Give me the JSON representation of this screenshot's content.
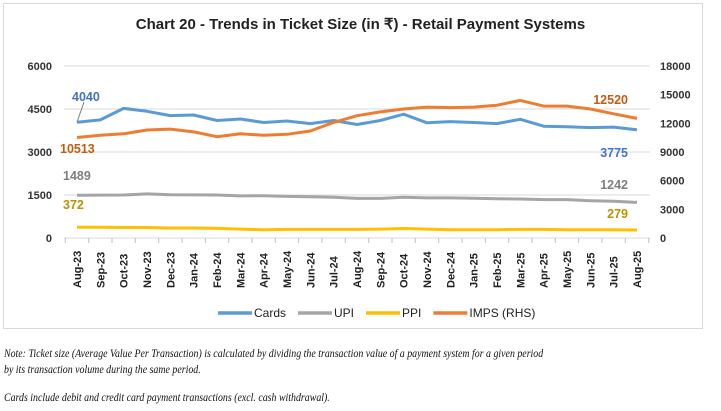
{
  "chart_data": {
    "type": "line",
    "title": "Chart 20 - Trends in Ticket Size (in ₹) - Retail Payment Systems",
    "categories": [
      "Aug-23",
      "Sep-23",
      "Oct-23",
      "Nov-23",
      "Dec-23",
      "Jan-24",
      "Feb-24",
      "Mar-24",
      "Apr-24",
      "May-24",
      "Jun-24",
      "Jul-24",
      "Aug-24",
      "Sep-24",
      "Oct-24",
      "Nov-24",
      "Dec-24",
      "Jan-25",
      "Feb-25",
      "Mar-25",
      "Apr-25",
      "May-25",
      "Jun-25",
      "Jul-25",
      "Aug-25"
    ],
    "y_left": {
      "range": [
        0,
        6000
      ],
      "ticks": [
        "0",
        "1500",
        "3000",
        "4500",
        "6000"
      ]
    },
    "y_right": {
      "range": [
        0,
        18000
      ],
      "ticks": [
        "0",
        "3000",
        "6000",
        "9000",
        "12000",
        "15000",
        "18000"
      ]
    },
    "grid": true,
    "legend_position": "bottom",
    "series": [
      {
        "name": "Cards",
        "axis": "left",
        "color": "#5b9bd5",
        "values": [
          4040,
          4120,
          4520,
          4420,
          4270,
          4290,
          4100,
          4150,
          4030,
          4080,
          3990,
          4100,
          3960,
          4100,
          4320,
          4020,
          4060,
          4030,
          3990,
          4140,
          3900,
          3880,
          3850,
          3870,
          3775
        ],
        "start_label": "4040",
        "end_label": "3775"
      },
      {
        "name": "UPI",
        "axis": "left",
        "color": "#a5a5a5",
        "values": [
          1489,
          1495,
          1500,
          1540,
          1510,
          1505,
          1500,
          1470,
          1475,
          1450,
          1440,
          1420,
          1380,
          1380,
          1420,
          1400,
          1400,
          1390,
          1370,
          1360,
          1340,
          1340,
          1300,
          1280,
          1242
        ],
        "start_label": "1489",
        "end_label": "1242"
      },
      {
        "name": "PPI",
        "axis": "left",
        "color": "#ffc000",
        "values": [
          372,
          375,
          365,
          365,
          350,
          350,
          335,
          310,
          285,
          300,
          300,
          300,
          300,
          310,
          330,
          310,
          290,
          290,
          290,
          300,
          300,
          285,
          290,
          285,
          279
        ],
        "start_label": "372",
        "end_label": "279"
      },
      {
        "name": "IMPS (RHS)",
        "axis": "right",
        "color": "#ed7d31",
        "values": [
          10513,
          10750,
          10900,
          11300,
          11400,
          11100,
          10600,
          10900,
          10750,
          10850,
          11200,
          12100,
          12800,
          13200,
          13500,
          13700,
          13650,
          13700,
          13900,
          14400,
          13800,
          13800,
          13500,
          13000,
          12520
        ],
        "start_label": "10513",
        "end_label": "12520"
      }
    ]
  },
  "notes": {
    "note1_line1": "Note: Ticket size (Average Value Per Transaction) is calculated by dividing the transaction value of a payment system for a given period",
    "note1_line2": "by its transaction volume during the same period.",
    "note2": "Cards include debit and credit card payment transactions (excl. cash withdrawal)."
  }
}
